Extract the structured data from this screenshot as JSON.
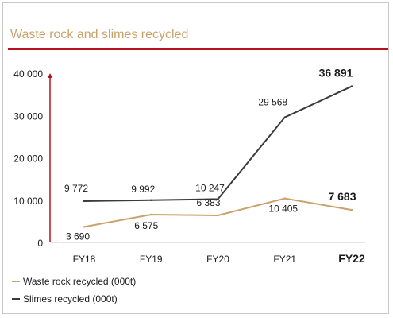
{
  "colors": {
    "accent": "#b5121b",
    "title": "#c9a26b",
    "series_waste": "#c9a26b",
    "series_slimes": "#3a3a3a",
    "text": "#1a1a1a"
  },
  "chart_data": {
    "type": "line",
    "title": "Waste rock and slimes recycled",
    "xlabel": "",
    "ylabel": "",
    "categories": [
      "FY18",
      "FY19",
      "FY20",
      "FY21",
      "FY22"
    ],
    "highlight_category": "FY22",
    "ylim": [
      0,
      40000
    ],
    "y_ticks": [
      "0",
      "10 000",
      "20 000",
      "30 000",
      "40 000"
    ],
    "y_tick_values": [
      0,
      10000,
      20000,
      30000,
      40000
    ],
    "grid": false,
    "legend_position": "bottom-left",
    "series": [
      {
        "name": "Waste rock recycled (000t)",
        "values": [
          3690,
          6575,
          6383,
          10405,
          7683
        ],
        "labels": [
          "3 690",
          "6 575",
          "6 383",
          "10 405",
          "7 683"
        ],
        "label_positions": [
          "below",
          "below",
          "above",
          "below",
          "above"
        ]
      },
      {
        "name": "Slimes recycled (000t)",
        "values": [
          9772,
          9992,
          10247,
          29568,
          36891
        ],
        "labels": [
          "9 772",
          "9 992",
          "10 247",
          "29 568",
          "36 891"
        ],
        "label_positions": [
          "above",
          "above",
          "above",
          "above",
          "above"
        ]
      }
    ]
  }
}
